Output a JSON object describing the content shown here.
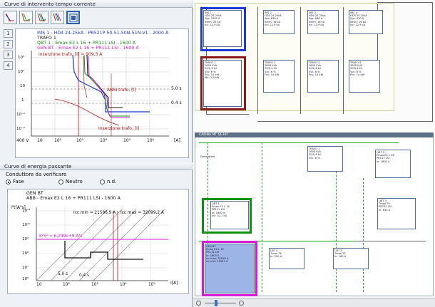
{
  "panel1": {
    "title": "Curve di intervento tempo-corrente",
    "tool_icons": [
      "curve-single-icon",
      "curve-double-icon",
      "curve-triple-icon",
      "curve-quad-icon",
      "curve-selected-icon"
    ],
    "side_buttons": [
      "1",
      "2",
      "3",
      "4"
    ],
    "legend": [
      {
        "text": "IMS 1 - HD4 24.25kA - PR521P 50-51.50N-51N-V1 - 2000 A",
        "color": "#1a37d8"
      },
      {
        "text": "TRAFO 1",
        "color": "#222222"
      },
      {
        "text": "QBT 1 - Emax E2 L 16 + PR111 LSI - 1600 A",
        "color": "#109010"
      },
      {
        "text": "GEN BT - Emax E2 L 16 + PR111 LSI - 1600 A",
        "color": "#d81ad8"
      }
    ],
    "annotations": {
      "inrush": "Inserzione trafo, [I] = 909,3 A",
      "ansi": "ANSI trafo, [I]",
      "insertion": "Inserzione trafo, [I]",
      "t1": "5.0 s",
      "t2": "0.4 s",
      "volt": "400 V",
      "unit": "[A]"
    },
    "x_ticks": [
      "10",
      "10²",
      "10³",
      "10⁴",
      "10⁵",
      "10⁶"
    ],
    "y_ticks": [
      "10³",
      "10²",
      "10",
      "1",
      "10⁻¹",
      "10⁻²",
      "10⁻³"
    ],
    "y_unit": "t[s]"
  },
  "panel2": {
    "title": "Curve di energia passante",
    "group_label": "Conduttore da verificare",
    "options": [
      "Fase",
      "Neutro",
      "n.d."
    ],
    "selected_option": "Fase",
    "legend": [
      {
        "text": "GEN BT",
        "color": "#111111"
      },
      {
        "text": "ABB - Emax E2 L 16 + PR111 LSI - 1600 A",
        "color": "#111111"
      }
    ],
    "y_unit": "I²t[A²s]",
    "x_unit": "I[A]",
    "icc_min": "Icc min = 21586,9 A",
    "icc_max": "Icc max = 32099,2 A",
    "k2s2": "K²S² = 6,299e+9 A²s",
    "t1": "5,0 s",
    "t2": "0,4 s",
    "x_ticks": [
      "10",
      "10²",
      "10³",
      "10⁴",
      "10⁵"
    ],
    "y_ticks": [
      "10¹¹",
      "10¹⁰",
      "10⁹",
      "10⁸",
      "10⁷",
      "10⁶"
    ]
  },
  "diagram": {
    "cabin_label": "CABINA MT QF3BT",
    "top_boxes": [
      {
        "lines": [
          "IMS 1",
          "HD4 24.25kA",
          "Sgz: 2000 A",
          "Iterm: 25 kA",
          "Icc: 12,9 kA"
        ]
      },
      {
        "lines": [
          "IMS 2",
          "HD4 24.25kA",
          "Sgz: 630 A",
          "Iterm: 16 kA",
          "Icc: 12,9 kA"
        ]
      },
      {
        "lines": [
          "IMS 3",
          "HD4 24.25kA",
          "Sgz: 630 A",
          "Iterm: 16 kA",
          "Icc: 12,9 kA"
        ]
      },
      {
        "lines": [
          "IMS 4",
          "HD4 24.25kA",
          "Sgz: 630 A",
          "Iterm: 16 kA",
          "Icc: 12,9 kA"
        ]
      }
    ],
    "trafo_boxes": [
      {
        "lines": [
          "TRAFO 1",
          "1600 kVA",
          "20/0,4 kV",
          "Vcc: 6 %",
          "Pcu: 14 kW",
          "Pfe: 2,6 kW"
        ]
      },
      {
        "lines": [
          "TRAFO 2",
          "1600 kVA",
          "20/0,4 kV",
          "Vcc: 6 %",
          "Pcu: 14 kW"
        ]
      },
      {
        "lines": [
          "TRAFO 3",
          "1600 kVA",
          "20/0,4 kV",
          "Vcc: 6 %",
          "Pcu: 14 kW"
        ]
      },
      {
        "lines": [
          "TRAFO 4",
          "1600 kVA",
          "20/0,4 kV",
          "Vcc: 6 %",
          "Pcu: 14 kW"
        ]
      }
    ],
    "lower_boxes": [
      {
        "lines": [
          "QBT 1",
          "Emax E2 L 16",
          "PR111 LSI",
          "In: 1600 A",
          "Icc: 32,1 kA"
        ]
      },
      {
        "lines": [
          "QBT 2",
          "Emax E2 L 16",
          "PR111 LSI",
          "In: 1600 A"
        ]
      },
      {
        "lines": [
          "GEN BT",
          "Emax E2 L 16",
          "PR111 LSI",
          "In: 1600 A",
          "Icc max: 32099 A",
          "Icc min: 21587 A"
        ]
      },
      {
        "lines": [
          "QBT 3",
          "Tmax T5",
          "PR222 LSI",
          "In: 630 A"
        ]
      },
      {
        "lines": [
          "CBT 4",
          "Tmax T4",
          "In: 250 A"
        ]
      },
      {
        "lines": [
          "CBT 5",
          "Tmax T2",
          "In: 160 A"
        ]
      }
    ],
    "gen_label": "Generatore"
  },
  "colors": {
    "accent_blue": "#1a37d8",
    "green": "#109010",
    "magenta": "#d81ad8",
    "dark_red": "#8a1a1a"
  }
}
